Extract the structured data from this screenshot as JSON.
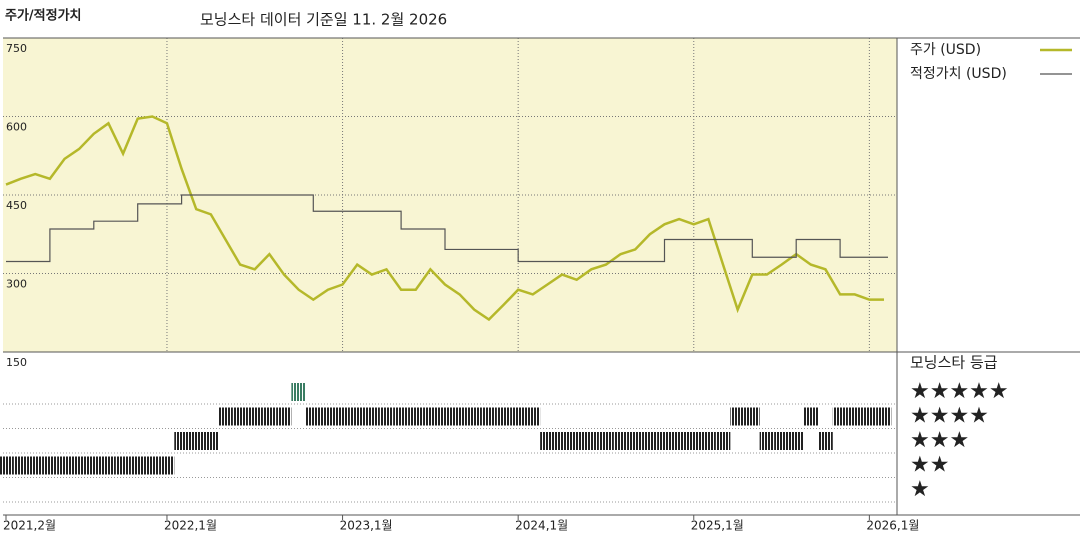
{
  "chart_data": [
    {
      "type": "line",
      "title": "주가/적정가치",
      "subtitle": "모닝스타 데이터 기준일 11. 2월 2026",
      "x": [
        "2021-02",
        "2021-03",
        "2021-04",
        "2021-05",
        "2021-06",
        "2021-07",
        "2021-08",
        "2021-09",
        "2021-10",
        "2021-11",
        "2021-12",
        "2022-01",
        "2022-02",
        "2022-03",
        "2022-04",
        "2022-05",
        "2022-06",
        "2022-07",
        "2022-08",
        "2022-09",
        "2022-10",
        "2022-11",
        "2022-12",
        "2023-01",
        "2023-02",
        "2023-03",
        "2023-04",
        "2023-05",
        "2023-06",
        "2023-07",
        "2023-08",
        "2023-09",
        "2023-10",
        "2023-11",
        "2023-12",
        "2024-01",
        "2024-02",
        "2024-03",
        "2024-04",
        "2024-05",
        "2024-06",
        "2024-07",
        "2024-08",
        "2024-09",
        "2024-10",
        "2024-11",
        "2024-12",
        "2025-01",
        "2025-02",
        "2025-03",
        "2025-04",
        "2025-05",
        "2025-06",
        "2025-07",
        "2025-08",
        "2025-09",
        "2025-10",
        "2025-11",
        "2025-12",
        "2026-01",
        "2026-02"
      ],
      "xlim": [
        "2021-02",
        "2026-02"
      ],
      "series": [
        {
          "name": "주가 (USD)",
          "color": "#b5b82a",
          "style": "line",
          "values": [
            470,
            481,
            490,
            481,
            519,
            538,
            567,
            587,
            529,
            596,
            600,
            587,
            500,
            423,
            413,
            365,
            317,
            308,
            337,
            298,
            269,
            250,
            269,
            279,
            317,
            298,
            308,
            269,
            269,
            308,
            279,
            260,
            231,
            212,
            240,
            269,
            260,
            279,
            298,
            288,
            308,
            317,
            337,
            346,
            375,
            394,
            404,
            394,
            404,
            317,
            231,
            298,
            298,
            317,
            337,
            317,
            308,
            260,
            260,
            250,
            250
          ]
        },
        {
          "name": "적정가치 (USD)",
          "color": "#555555",
          "style": "step",
          "values": [
            323,
            323,
            323,
            385,
            385,
            385,
            400,
            400,
            400,
            433,
            433,
            433,
            450,
            450,
            450,
            450,
            450,
            450,
            450,
            450,
            450,
            419,
            419,
            419,
            419,
            419,
            419,
            385,
            385,
            385,
            346,
            346,
            346,
            346,
            346,
            323,
            323,
            323,
            323,
            323,
            323,
            323,
            323,
            323,
            323,
            365,
            365,
            365,
            365,
            365,
            365,
            331,
            331,
            331,
            365,
            365,
            365,
            331,
            331,
            331,
            331
          ]
        }
      ],
      "ylim": [
        150,
        750
      ],
      "yticks": [
        150,
        300,
        450,
        600,
        750
      ],
      "grid": true,
      "legend": "right"
    },
    {
      "type": "barcode",
      "title": "모닝스타 등급",
      "x": [
        "2021-02",
        "2021-03",
        "2021-04",
        "2021-05",
        "2021-06",
        "2021-07",
        "2021-08",
        "2021-09",
        "2021-10",
        "2021-11",
        "2021-12",
        "2022-01",
        "2022-02",
        "2022-03",
        "2022-04",
        "2022-05",
        "2022-06",
        "2022-07",
        "2022-08",
        "2022-09",
        "2022-10",
        "2022-11",
        "2022-12",
        "2023-01",
        "2023-02",
        "2023-03",
        "2023-04",
        "2023-05",
        "2023-06",
        "2023-07",
        "2023-08",
        "2023-09",
        "2023-10",
        "2023-11",
        "2023-12",
        "2024-01",
        "2024-02",
        "2024-03",
        "2024-04",
        "2024-05",
        "2024-06",
        "2024-07",
        "2024-08",
        "2024-09",
        "2024-10",
        "2024-11",
        "2024-12",
        "2025-01",
        "2025-02",
        "2025-03",
        "2025-04",
        "2025-05",
        "2025-06",
        "2025-07",
        "2025-08",
        "2025-09",
        "2025-10",
        "2025-11",
        "2025-12",
        "2026-01",
        "2026-02"
      ],
      "xlim": [
        "2021-02",
        "2026-02"
      ],
      "values": [
        2,
        2,
        2,
        2,
        2,
        2,
        2,
        2,
        2,
        2,
        2,
        2,
        3,
        3,
        3,
        4,
        4,
        4,
        4,
        4,
        5,
        4,
        4,
        4,
        4,
        4,
        4,
        4,
        4,
        4,
        4,
        4,
        4,
        4,
        4,
        4,
        4,
        3,
        3,
        3,
        3,
        3,
        3,
        3,
        3,
        3,
        3,
        3,
        3,
        3,
        4,
        4,
        3,
        3,
        3,
        4,
        3,
        4,
        4,
        4,
        4
      ],
      "color": "#222222",
      "top_color": "#3a7d63",
      "levels": [
        5,
        4,
        3,
        2,
        1
      ],
      "level_labels": [
        "★★★★★",
        "★★★★",
        "★★★",
        "★★",
        "★"
      ],
      "xticks": [
        {
          "value": "2021-02",
          "label": "2021,2월"
        },
        {
          "value": "2022-01",
          "label": "2022,1월"
        },
        {
          "value": "2023-01",
          "label": "2023,1월"
        },
        {
          "value": "2024-01",
          "label": "2024,1월"
        },
        {
          "value": "2025-01",
          "label": "2025,1월"
        },
        {
          "value": "2026-01",
          "label": "2026,1월"
        }
      ]
    }
  ]
}
